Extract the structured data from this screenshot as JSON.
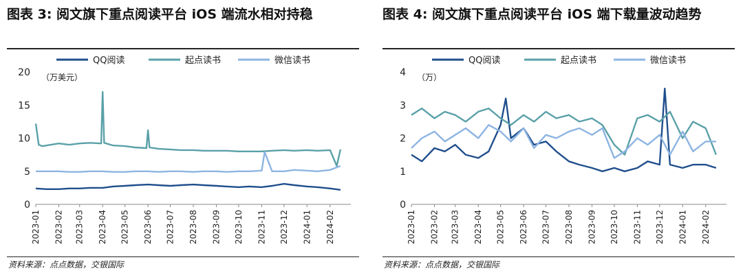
{
  "panels": [
    {
      "title": "图表 3: 阅文旗下重点阅读平台 iOS 端流水相对持稳",
      "source": "资料来源：点点数据，交银国际",
      "unit": "（万美元）",
      "chart_data": {
        "type": "line",
        "ylim": [
          0,
          20
        ],
        "yticks": [
          "0",
          "5",
          "10",
          "15",
          "20"
        ],
        "xticks": [
          "2023-01",
          "2023-02",
          "2023-03",
          "2023-04",
          "2023-05",
          "2023-06",
          "2023-07",
          "2023-08",
          "2023-09",
          "2023-10",
          "2023-11",
          "2023-12",
          "2024-01",
          "2024-02"
        ],
        "legend_position": "top",
        "series": [
          {
            "name": "QQ阅读",
            "color": "#1f4e8c",
            "x": [
              "2023-01-01",
              "2023-01-15",
              "2023-02-01",
              "2023-02-15",
              "2023-03-01",
              "2023-03-15",
              "2023-04-01",
              "2023-04-15",
              "2023-05-01",
              "2023-05-15",
              "2023-06-01",
              "2023-06-15",
              "2023-07-01",
              "2023-07-15",
              "2023-08-01",
              "2023-08-15",
              "2023-09-01",
              "2023-09-15",
              "2023-10-01",
              "2023-10-15",
              "2023-11-01",
              "2023-11-15",
              "2023-12-01",
              "2023-12-15",
              "2024-01-01",
              "2024-01-15",
              "2024-02-01",
              "2024-02-15"
            ],
            "values": [
              2.4,
              2.3,
              2.3,
              2.4,
              2.4,
              2.5,
              2.5,
              2.7,
              2.8,
              2.9,
              3.0,
              2.9,
              2.8,
              2.9,
              3.0,
              2.9,
              2.8,
              2.7,
              2.6,
              2.7,
              2.6,
              2.8,
              3.1,
              2.9,
              2.7,
              2.6,
              2.4,
              2.2
            ]
          },
          {
            "name": "起点读书",
            "color": "#5aa0a8",
            "x": [
              "2023-01-01",
              "2023-01-05",
              "2023-01-10",
              "2023-02-01",
              "2023-02-15",
              "2023-03-01",
              "2023-03-15",
              "2023-03-30",
              "2023-04-01",
              "2023-04-03",
              "2023-04-15",
              "2023-05-01",
              "2023-05-15",
              "2023-05-30",
              "2023-06-01",
              "2023-06-03",
              "2023-06-15",
              "2023-07-01",
              "2023-07-15",
              "2023-08-01",
              "2023-08-15",
              "2023-09-01",
              "2023-09-15",
              "2023-10-01",
              "2023-10-15",
              "2023-11-01",
              "2023-11-15",
              "2023-12-01",
              "2023-12-15",
              "2024-01-01",
              "2024-01-15",
              "2024-02-01",
              "2024-02-10",
              "2024-02-15"
            ],
            "values": [
              12.2,
              9.0,
              8.8,
              9.2,
              9.0,
              9.2,
              9.3,
              9.2,
              17.0,
              9.3,
              8.9,
              8.8,
              8.6,
              8.5,
              11.2,
              8.6,
              8.4,
              8.3,
              8.2,
              8.2,
              8.1,
              8.1,
              8.1,
              8.0,
              8.0,
              8.0,
              8.1,
              8.2,
              8.1,
              8.2,
              8.1,
              8.2,
              5.8,
              8.3
            ]
          },
          {
            "name": "微信读书",
            "color": "#8db4e2",
            "x": [
              "2023-01-01",
              "2023-01-15",
              "2023-02-01",
              "2023-02-15",
              "2023-03-01",
              "2023-03-15",
              "2023-04-01",
              "2023-04-15",
              "2023-05-01",
              "2023-05-15",
              "2023-06-01",
              "2023-06-15",
              "2023-07-01",
              "2023-07-15",
              "2023-08-01",
              "2023-08-15",
              "2023-09-01",
              "2023-09-15",
              "2023-10-01",
              "2023-10-15",
              "2023-11-01",
              "2023-11-05",
              "2023-11-15",
              "2023-12-01",
              "2023-12-15",
              "2024-01-01",
              "2024-01-15",
              "2024-02-01",
              "2024-02-15"
            ],
            "values": [
              5.0,
              5.0,
              5.0,
              4.9,
              4.9,
              5.0,
              5.0,
              4.9,
              4.9,
              5.0,
              5.0,
              4.9,
              5.0,
              5.0,
              4.9,
              5.0,
              5.0,
              4.9,
              5.0,
              5.0,
              5.1,
              7.9,
              5.0,
              5.0,
              5.2,
              5.1,
              5.0,
              5.2,
              5.8
            ]
          }
        ]
      }
    },
    {
      "title": "图表 4: 阅文旗下重点阅读平台 iOS 端下载量波动趋势",
      "source": "资料来源：点点数据，交银国际",
      "unit": "（万）",
      "chart_data": {
        "type": "line",
        "ylim": [
          0,
          4
        ],
        "yticks": [
          "0",
          "1",
          "2",
          "3",
          "4"
        ],
        "xticks": [
          "2023-01",
          "2023-02",
          "2023-03",
          "2023-04",
          "2023-05",
          "2023-06",
          "2023-07",
          "2023-08",
          "2023-09",
          "2023-10",
          "2023-11",
          "2023-12",
          "2024-01",
          "2024-02"
        ],
        "legend_position": "top",
        "series": [
          {
            "name": "QQ阅读",
            "color": "#1f4e8c",
            "x": [
              "2023-01-01",
              "2023-01-15",
              "2023-02-01",
              "2023-02-15",
              "2023-03-01",
              "2023-03-15",
              "2023-04-01",
              "2023-04-15",
              "2023-05-01",
              "2023-05-08",
              "2023-05-15",
              "2023-06-01",
              "2023-06-15",
              "2023-07-01",
              "2023-07-15",
              "2023-08-01",
              "2023-08-15",
              "2023-09-01",
              "2023-09-15",
              "2023-10-01",
              "2023-10-15",
              "2023-11-01",
              "2023-11-15",
              "2023-12-01",
              "2023-12-08",
              "2023-12-15",
              "2024-01-01",
              "2024-01-15",
              "2024-02-01",
              "2024-02-15"
            ],
            "values": [
              1.5,
              1.3,
              1.7,
              1.6,
              1.8,
              1.5,
              1.4,
              1.6,
              2.4,
              3.2,
              2.0,
              2.3,
              1.8,
              1.9,
              1.6,
              1.3,
              1.2,
              1.1,
              1.0,
              1.1,
              1.0,
              1.1,
              1.3,
              1.2,
              3.5,
              1.2,
              1.1,
              1.2,
              1.2,
              1.1
            ]
          },
          {
            "name": "起点读书",
            "color": "#5aa0a8",
            "x": [
              "2023-01-01",
              "2023-01-15",
              "2023-02-01",
              "2023-02-15",
              "2023-03-01",
              "2023-03-15",
              "2023-04-01",
              "2023-04-15",
              "2023-05-01",
              "2023-05-15",
              "2023-06-01",
              "2023-06-15",
              "2023-07-01",
              "2023-07-15",
              "2023-08-01",
              "2023-08-15",
              "2023-09-01",
              "2023-09-15",
              "2023-10-01",
              "2023-10-15",
              "2023-11-01",
              "2023-11-15",
              "2023-12-01",
              "2023-12-15",
              "2024-01-01",
              "2024-01-15",
              "2024-02-01",
              "2024-02-15"
            ],
            "values": [
              2.7,
              2.9,
              2.6,
              2.8,
              2.7,
              2.5,
              2.8,
              2.9,
              2.6,
              2.4,
              2.7,
              2.5,
              2.8,
              2.6,
              2.7,
              2.5,
              2.6,
              2.4,
              1.8,
              1.5,
              2.6,
              2.7,
              2.5,
              2.8,
              2.0,
              2.5,
              2.3,
              1.5
            ]
          },
          {
            "name": "微信读书",
            "color": "#8db4e2",
            "x": [
              "2023-01-01",
              "2023-01-15",
              "2023-02-01",
              "2023-02-15",
              "2023-03-01",
              "2023-03-15",
              "2023-04-01",
              "2023-04-15",
              "2023-05-01",
              "2023-05-15",
              "2023-06-01",
              "2023-06-15",
              "2023-07-01",
              "2023-07-15",
              "2023-08-01",
              "2023-08-15",
              "2023-09-01",
              "2023-09-15",
              "2023-10-01",
              "2023-10-15",
              "2023-11-01",
              "2023-11-15",
              "2023-12-01",
              "2023-12-15",
              "2024-01-01",
              "2024-01-15",
              "2024-02-01",
              "2024-02-15"
            ],
            "values": [
              1.7,
              2.0,
              2.2,
              1.9,
              2.1,
              2.3,
              2.0,
              2.4,
              2.2,
              1.9,
              2.3,
              1.7,
              2.1,
              2.0,
              2.2,
              2.3,
              2.1,
              2.3,
              1.4,
              1.6,
              2.0,
              1.8,
              2.1,
              1.5,
              2.2,
              1.6,
              1.9,
              1.9
            ]
          }
        ]
      }
    }
  ]
}
